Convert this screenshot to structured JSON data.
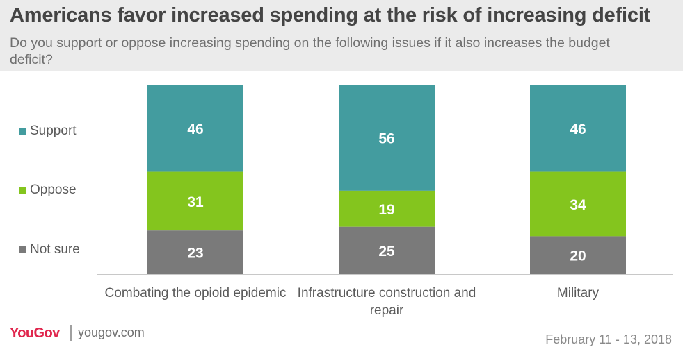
{
  "header": {
    "title": "Americans favor increased spending at the risk of increasing deficit",
    "subtitle": "Do you support or oppose increasing spending on the following issues if it also increases the budget deficit?"
  },
  "legend": [
    {
      "label": "Support",
      "color": "#439c9f"
    },
    {
      "label": "Oppose",
      "color": "#84c51e"
    },
    {
      "label": "Not sure",
      "color": "#7a7a7a"
    }
  ],
  "chart_data": {
    "type": "bar",
    "stacked": true,
    "orientation": "vertical",
    "unit": "percent",
    "categories": [
      "Combating the opioid epidemic",
      "Infrastructure construction and repair",
      "Military"
    ],
    "series": [
      {
        "name": "Support",
        "color": "#439c9f",
        "values": [
          46,
          56,
          46
        ]
      },
      {
        "name": "Oppose",
        "color": "#84c51e",
        "values": [
          31,
          19,
          34
        ]
      },
      {
        "name": "Not sure",
        "color": "#7a7a7a",
        "values": [
          23,
          25,
          20
        ]
      }
    ],
    "ylim": [
      0,
      100
    ],
    "grid": false,
    "legend_position": "left"
  },
  "footer": {
    "logo": "YouGov",
    "site": "yougov.com",
    "date": "February 11 - 13, 2018"
  }
}
